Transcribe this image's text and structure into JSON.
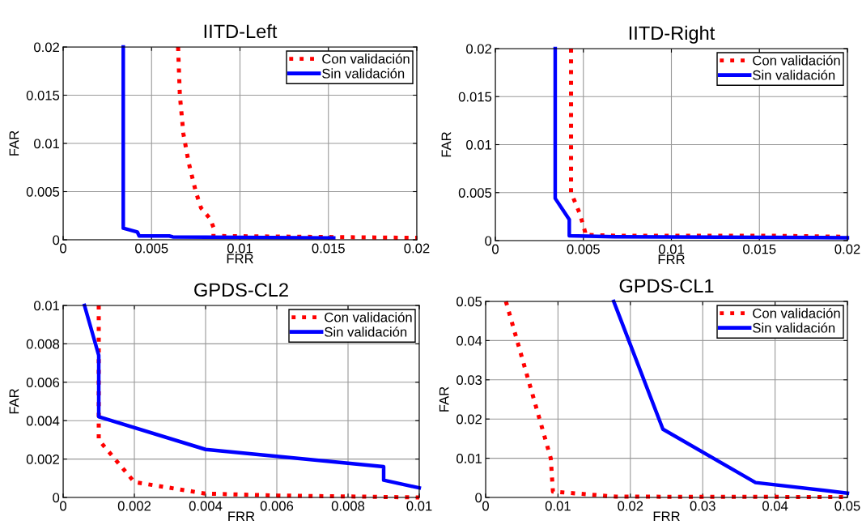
{
  "chart_data": [
    {
      "type": "line",
      "title": "IITD-Left",
      "xlabel": "FRR",
      "ylabel": "FAR",
      "xlim": [
        0,
        0.02
      ],
      "ylim": [
        0,
        0.02
      ],
      "xticks": [
        0,
        0.005,
        0.01,
        0.015,
        0.02
      ],
      "yticks": [
        0,
        0.005,
        0.01,
        0.015,
        0.02
      ],
      "grid": true,
      "legend": "top right",
      "series": [
        {
          "name": "Con validación",
          "color": "#ff0000",
          "line_style": "dotted",
          "x": [
            0.0065,
            0.0066,
            0.0068,
            0.0071,
            0.0075,
            0.0078,
            0.0083,
            0.0085,
            0.0085,
            0.02
          ],
          "values": [
            0.02,
            0.015,
            0.011,
            0.008,
            0.005,
            0.0033,
            0.0022,
            0.0013,
            0.0004,
            0.0002
          ]
        },
        {
          "name": "Sin validación",
          "color": "#0000ff",
          "line_style": "solid",
          "x": [
            0.0034,
            0.0034,
            0.0042,
            0.0043,
            0.006,
            0.0062,
            0.0153
          ],
          "values": [
            0.02,
            0.0012,
            0.0008,
            0.0004,
            0.0004,
            0.0003,
            0.0002
          ]
        }
      ]
    },
    {
      "type": "line",
      "title": "IITD-Right",
      "xlabel": "FRR",
      "ylabel": "FAR",
      "xlim": [
        0,
        0.02
      ],
      "ylim": [
        0,
        0.02
      ],
      "xticks": [
        0,
        0.005,
        0.01,
        0.015,
        0.02
      ],
      "yticks": [
        0,
        0.005,
        0.01,
        0.015,
        0.02
      ],
      "grid": true,
      "legend": "top right",
      "series": [
        {
          "name": "Con validación",
          "color": "#ff0000",
          "line_style": "dotted",
          "x": [
            0.0043,
            0.0043,
            0.0048,
            0.0051,
            0.0051,
            0.007,
            0.016,
            0.02
          ],
          "values": [
            0.02,
            0.005,
            0.0028,
            0.0009,
            0.0006,
            0.0005,
            0.0005,
            0.0004
          ]
        },
        {
          "name": "Sin validación",
          "color": "#0000ff",
          "line_style": "solid",
          "x": [
            0.0034,
            0.0034,
            0.0042,
            0.0042,
            0.0068,
            0.02
          ],
          "values": [
            0.02,
            0.0044,
            0.0022,
            0.0005,
            0.0004,
            0.0003
          ]
        }
      ]
    },
    {
      "type": "line",
      "title": "GPDS-CL2",
      "xlabel": "FRR",
      "ylabel": "FAR",
      "xlim": [
        0,
        0.01
      ],
      "ylim": [
        0,
        0.01
      ],
      "xticks": [
        0,
        0.002,
        0.004,
        0.006,
        0.008,
        0.01
      ],
      "yticks": [
        0,
        0.002,
        0.004,
        0.006,
        0.008,
        0.01
      ],
      "grid": true,
      "legend": "top right",
      "series": [
        {
          "name": "Con validación",
          "color": "#ff0000",
          "line_style": "dotted",
          "x": [
            0.001,
            0.001,
            0.002,
            0.004,
            0.006,
            0.01
          ],
          "values": [
            0.01,
            0.003,
            0.0008,
            0.0002,
            0.0001,
            0.0
          ]
        },
        {
          "name": "Sin validación",
          "color": "#0000ff",
          "line_style": "solid",
          "x": [
            0.0006,
            0.001,
            0.001,
            0.004,
            0.009,
            0.009,
            0.01
          ],
          "values": [
            0.01,
            0.0074,
            0.0042,
            0.0025,
            0.0016,
            0.0009,
            0.0005
          ]
        }
      ]
    },
    {
      "type": "line",
      "title": "GPDS-CL1",
      "xlabel": "FRR",
      "ylabel": "FAR",
      "xlim": [
        0,
        0.05
      ],
      "ylim": [
        0,
        0.05
      ],
      "xticks": [
        0,
        0.01,
        0.02,
        0.03,
        0.04,
        0.05
      ],
      "yticks": [
        0,
        0.01,
        0.02,
        0.03,
        0.04,
        0.05
      ],
      "grid": true,
      "legend": "top right",
      "series": [
        {
          "name": "Con validación",
          "color": "#ff0000",
          "line_style": "dotted",
          "x": [
            0.0028,
            0.009,
            0.0093,
            0.018,
            0.05
          ],
          "values": [
            0.05,
            0.01,
            0.0015,
            0.0002,
            0.0001
          ]
        },
        {
          "name": "Sin validación",
          "color": "#0000ff",
          "line_style": "solid",
          "x": [
            0.0177,
            0.0245,
            0.0373,
            0.05
          ],
          "values": [
            0.05,
            0.0174,
            0.0038,
            0.0011
          ]
        }
      ]
    }
  ]
}
